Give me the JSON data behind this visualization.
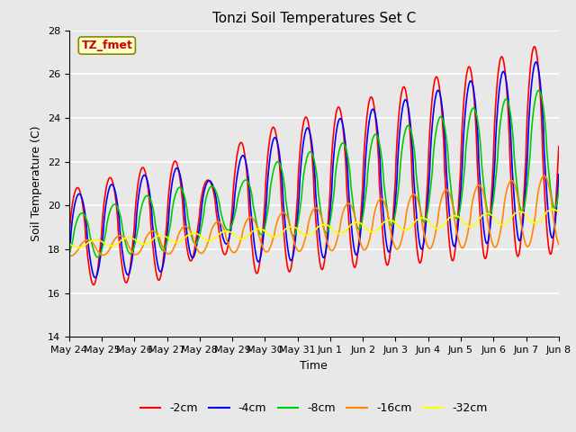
{
  "title": "Tonzi Soil Temperatures Set C",
  "xlabel": "Time",
  "ylabel": "Soil Temperature (C)",
  "ylim": [
    14,
    28
  ],
  "yticks": [
    14,
    16,
    18,
    20,
    22,
    24,
    26,
    28
  ],
  "xlim_start": 0,
  "xlim_end": 15,
  "xtick_labels": [
    "May 24",
    "May 25",
    "May 26",
    "May 27",
    "May 28",
    "May 29",
    "May 30",
    "May 31",
    "Jun 1",
    "Jun 2",
    "Jun 3",
    "Jun 4",
    "Jun 5",
    "Jun 6",
    "Jun 7",
    "Jun 8"
  ],
  "legend_labels": [
    "-2cm",
    "-4cm",
    "-8cm",
    "-16cm",
    "-32cm"
  ],
  "line_colors": [
    "#ff0000",
    "#0000ff",
    "#00cc00",
    "#ff8800",
    "#ffff00"
  ],
  "line_widths": [
    1.2,
    1.2,
    1.2,
    1.2,
    1.2
  ],
  "annotation_text": "TZ_fmet",
  "annotation_color": "#cc0000",
  "annotation_bg": "#ffffcc",
  "annotation_border": "#888800",
  "plot_bg": "#e8e8e8",
  "fig_bg": "#e8e8e8",
  "n_points": 1000
}
